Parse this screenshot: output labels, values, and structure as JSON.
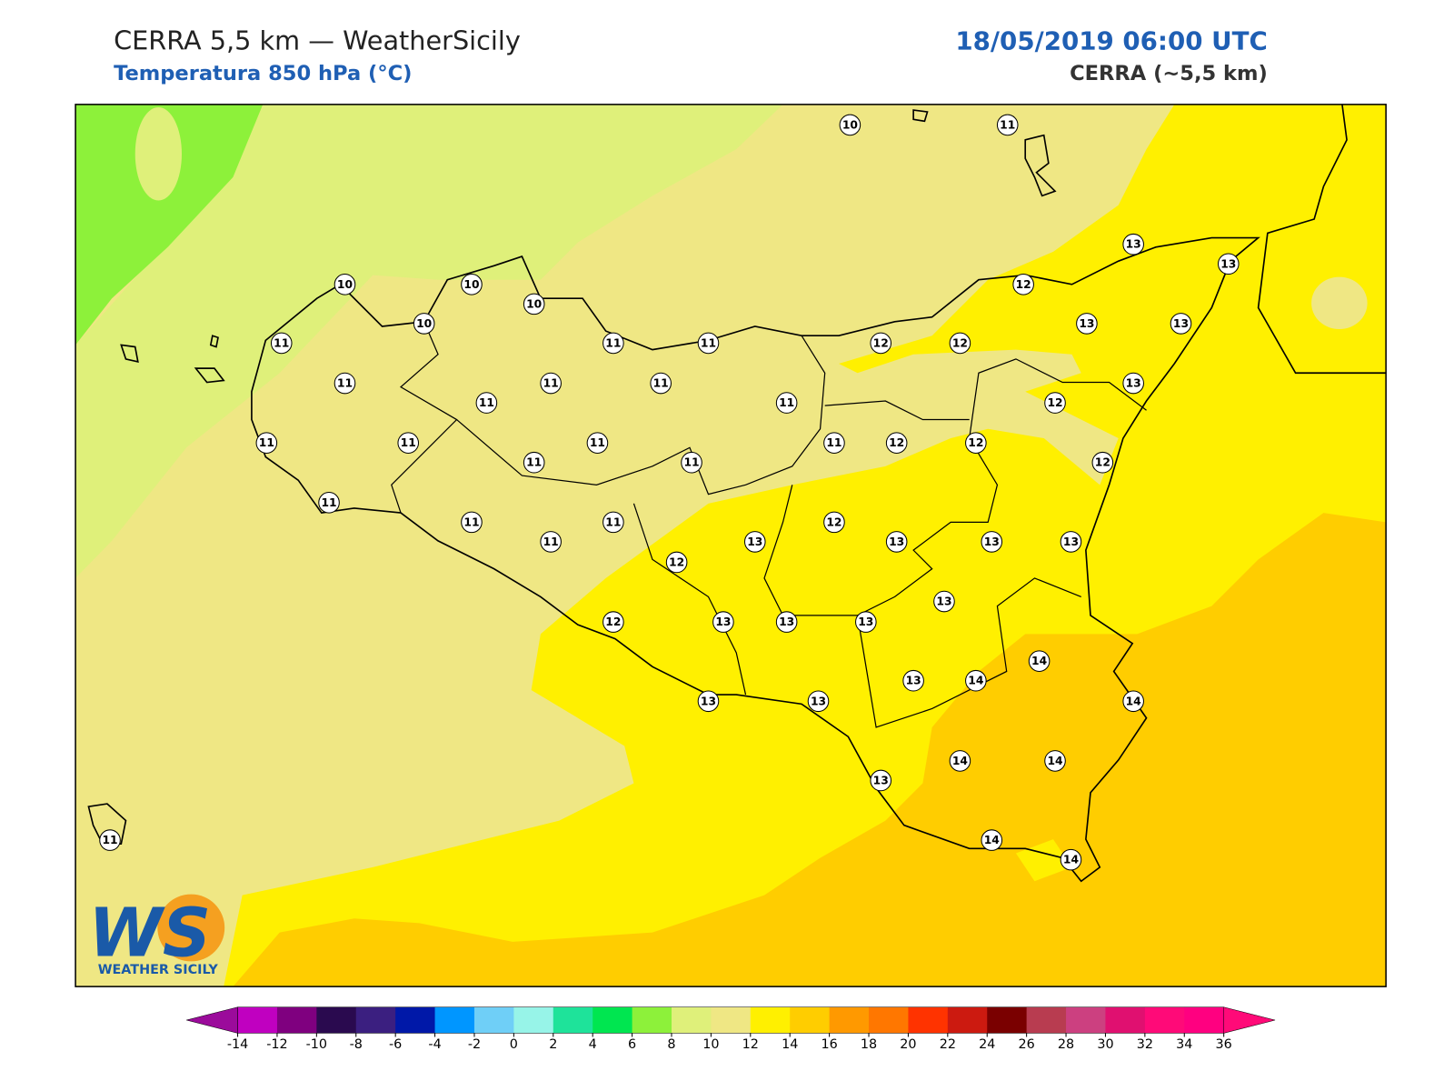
{
  "header": {
    "title": "CERRA 5,5 km — WeatherSicily",
    "subtitle": "Temperatura 850 hPa (°C)",
    "datetime": "18/05/2019 06:00 UTC",
    "model": "CERRA (~5,5 km)"
  },
  "stations": [
    10,
    11,
    13,
    13,
    10,
    10,
    10,
    10,
    12,
    13,
    13,
    11,
    11,
    11,
    12,
    12,
    11,
    11,
    11,
    13,
    11,
    11,
    12,
    11,
    11,
    11,
    11,
    12,
    12,
    11,
    11,
    12,
    11,
    11,
    11,
    12,
    11,
    13,
    13,
    13,
    13,
    12,
    13,
    12,
    13,
    13,
    13,
    14,
    13,
    14,
    13,
    13,
    14,
    13,
    14,
    14,
    14,
    14,
    11
  ],
  "colorbar": {
    "ticks": [
      -14,
      -12,
      -10,
      -8,
      -6,
      -4,
      -2,
      0,
      2,
      4,
      6,
      8,
      10,
      12,
      14,
      16,
      18,
      20,
      22,
      24,
      26,
      28,
      30,
      32,
      34,
      36
    ],
    "colors": [
      "#c000c0",
      "#7f007f",
      "#2a0a4f",
      "#3b1f80",
      "#0018a8",
      "#0096ff",
      "#6fcff7",
      "#97f4e8",
      "#1ee39a",
      "#00e650",
      "#8df13a",
      "#dff07a",
      "#efe784",
      "#fff000",
      "#ffcd00",
      "#ff9900",
      "#ff7700",
      "#ff3300",
      "#cc1a10",
      "#7a0000",
      "#b83c50",
      "#cc4080",
      "#e01070",
      "#ff0a78",
      "#ff0080"
    ],
    "under_color": "#9b0b9b",
    "over_color": "#ff0a78"
  },
  "logo": {
    "text": "WS",
    "caption": "WEATHER SICILY"
  }
}
